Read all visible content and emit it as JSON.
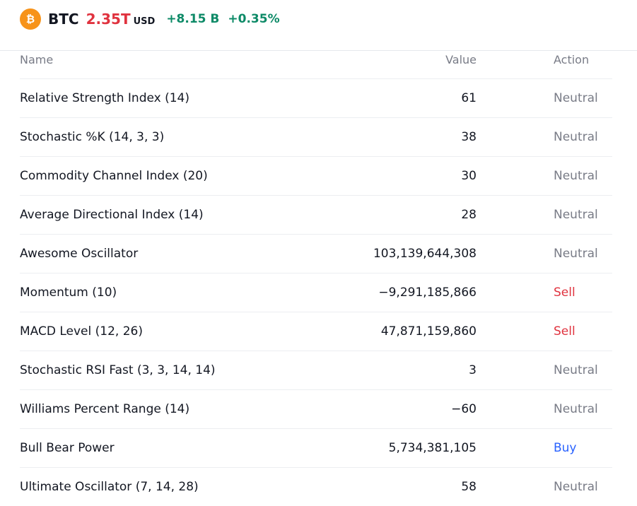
{
  "header": {
    "logo_icon": "bitcoin-icon",
    "symbol": "BTC",
    "price": "2.35",
    "price_unit": "T",
    "currency": "USD",
    "change": "+8.15 B",
    "change_percent": "+0.35%"
  },
  "colors": {
    "logo": "#f7931a",
    "price_down": "#e0333f",
    "change_up": "#0d8a67",
    "neutral": "#787b86",
    "sell": "#e0333f",
    "buy": "#2962ff"
  },
  "table": {
    "columns": {
      "name": "Name",
      "value": "Value",
      "action": "Action"
    },
    "rows": [
      {
        "name": "Relative Strength Index (14)",
        "value": "61",
        "action": "Neutral",
        "kind": "neutral"
      },
      {
        "name": "Stochastic %K (14, 3, 3)",
        "value": "38",
        "action": "Neutral",
        "kind": "neutral"
      },
      {
        "name": "Commodity Channel Index (20)",
        "value": "30",
        "action": "Neutral",
        "kind": "neutral"
      },
      {
        "name": "Average Directional Index (14)",
        "value": "28",
        "action": "Neutral",
        "kind": "neutral"
      },
      {
        "name": "Awesome Oscillator",
        "value": "103,139,644,308",
        "action": "Neutral",
        "kind": "neutral"
      },
      {
        "name": "Momentum (10)",
        "value": "−9,291,185,866",
        "action": "Sell",
        "kind": "sell"
      },
      {
        "name": "MACD Level (12, 26)",
        "value": "47,871,159,860",
        "action": "Sell",
        "kind": "sell"
      },
      {
        "name": "Stochastic RSI Fast (3, 3, 14, 14)",
        "value": "3",
        "action": "Neutral",
        "kind": "neutral"
      },
      {
        "name": "Williams Percent Range (14)",
        "value": "−60",
        "action": "Neutral",
        "kind": "neutral"
      },
      {
        "name": "Bull Bear Power",
        "value": "5,734,381,105",
        "action": "Buy",
        "kind": "buy"
      },
      {
        "name": "Ultimate Oscillator (7, 14, 28)",
        "value": "58",
        "action": "Neutral",
        "kind": "neutral"
      }
    ]
  }
}
